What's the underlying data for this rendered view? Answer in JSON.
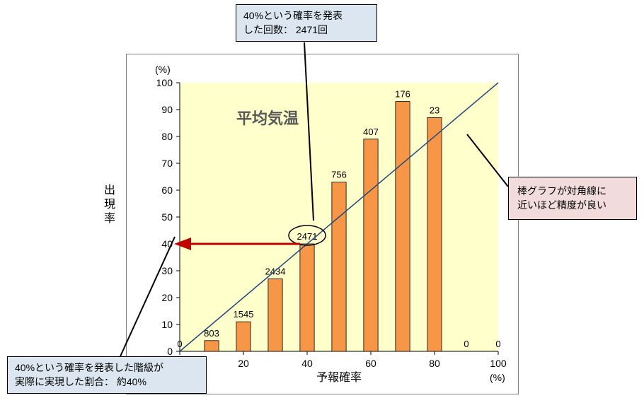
{
  "chart": {
    "type": "bar",
    "title": "平均気温",
    "title_fontsize": 22,
    "title_color": "#595959",
    "xlabel": "予報確率",
    "ylabel": "出現率",
    "unit_label": "(%)",
    "axis_fontsize": 14,
    "categories": [
      0,
      10,
      20,
      30,
      40,
      50,
      60,
      70,
      80,
      90,
      100
    ],
    "bar_values": [
      0,
      4,
      11,
      27,
      40,
      63,
      79,
      93,
      87,
      0,
      0
    ],
    "data_labels": [
      "0",
      "803",
      "1545",
      "2434",
      "2471",
      "756",
      "407",
      "176",
      "23",
      "0",
      "0"
    ],
    "bar_color": "#f79646",
    "bar_border": "#000000",
    "bar_width_ratio": 0.45,
    "plot_bg": "#ffffcc",
    "chart_bg": "#ffffff",
    "ylim": [
      0,
      100
    ],
    "ytick_step": 10,
    "xlim": [
      0,
      100
    ],
    "xtick_step": 20,
    "diagonal_color": "#1f497d",
    "diagonal_width": 1.5,
    "highlight_arrow_color": "#c00000",
    "highlight_arrow_width": 3,
    "highlight_ellipse_stroke": "#000000",
    "highlight_label_index": 4,
    "frame_border": "#808080"
  },
  "callouts": {
    "top": "40%という確率を発表\nした回数：  2471回",
    "bottom": "40%という確率を発表した階級が\n実際に実現した割合：  約40%",
    "right": "棒グラフが対角線に\n近いほど精度が良い"
  }
}
